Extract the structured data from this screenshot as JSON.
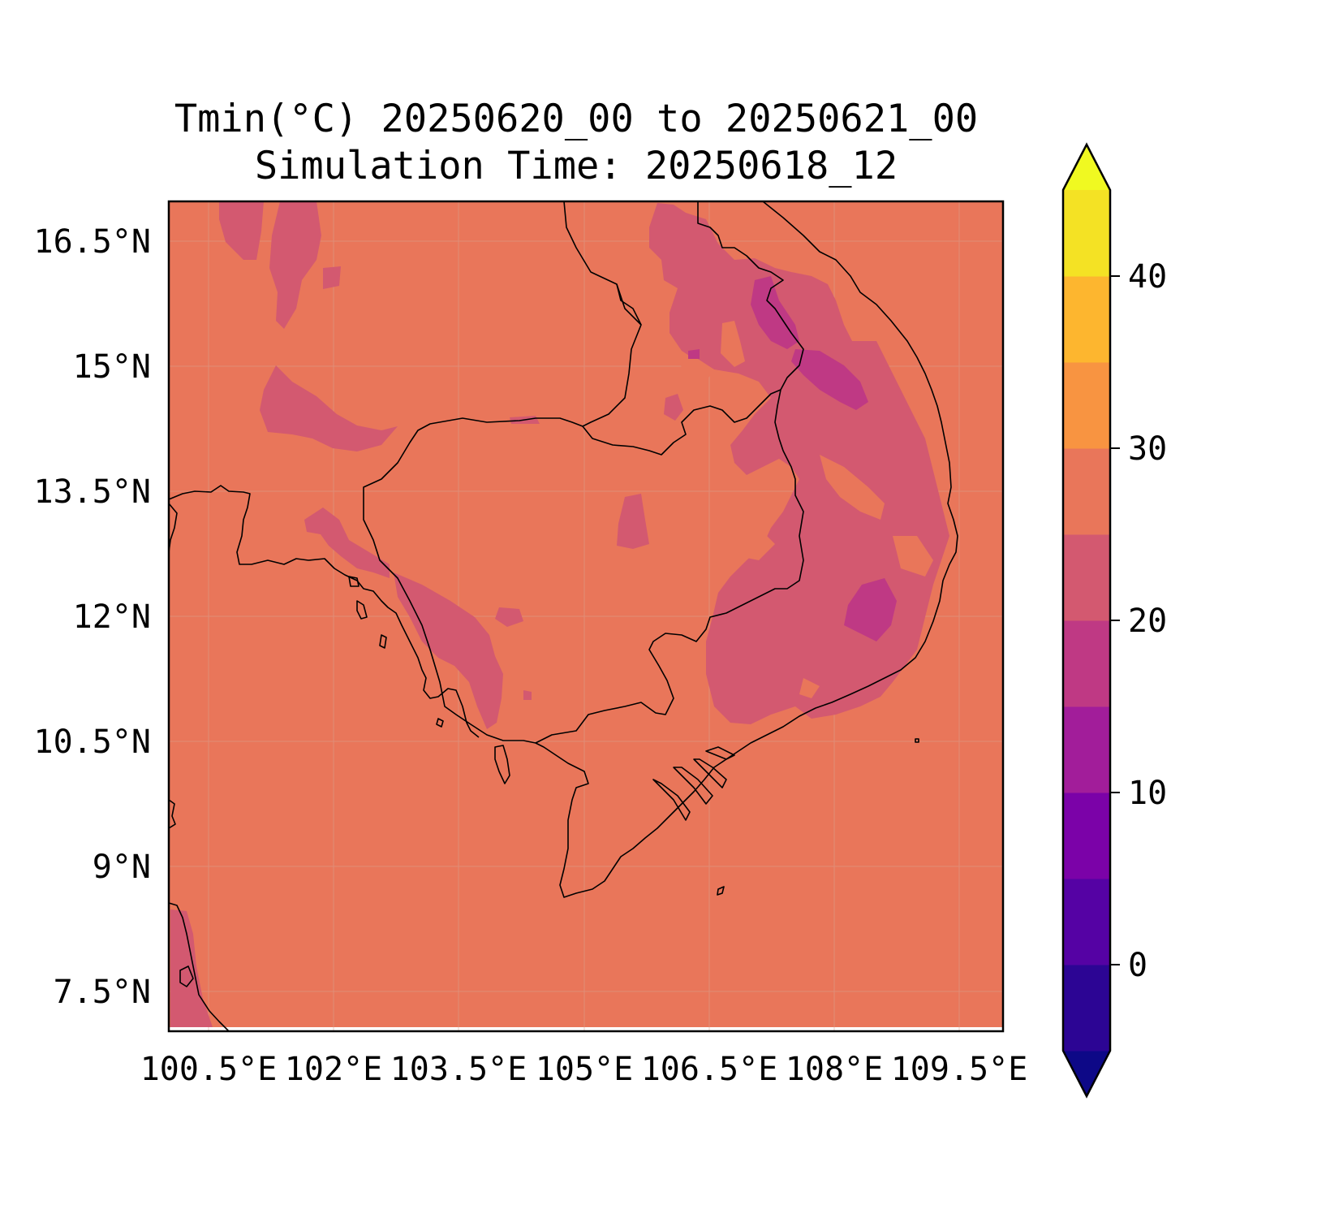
{
  "title": {
    "line1": "Tmin(°C) 20250620_00 to 20250621_00",
    "line2": "Simulation Time: 20250618_12"
  },
  "map": {
    "region": "Mainland Southeast Asia (Cambodia, southern Laos, southern Vietnam, eastern Thailand)",
    "lat_labels": [
      "16.5°N",
      "15°N",
      "13.5°N",
      "12°N",
      "10.5°N",
      "9°N",
      "7.5°N"
    ],
    "lon_labels": [
      "100.5°E",
      "102°E",
      "103.5°E",
      "105°E",
      "106.5°E",
      "108°E",
      "109.5°E"
    ],
    "lat_values": [
      16.5,
      15,
      13.5,
      12,
      10.5,
      9,
      7.5
    ],
    "lon_values": [
      100.5,
      102,
      103.5,
      105,
      106.5,
      108,
      109.5
    ],
    "dominant_fill_color": "#e9765a",
    "features": [
      "Minimum temperatures mostly in the 25–30 °C band across lowlands and sea",
      "20–25 °C band over the Annamite highlands and Central Highlands of Vietnam, Cardamom Mountains and parts of northeast Thailand",
      "15–20 °C pockets over the Bolaven Plateau region and the Lam Dong / Dak Lak highlands"
    ]
  },
  "colorbar": {
    "tick_labels": [
      "0",
      "10",
      "20",
      "30",
      "40"
    ],
    "levels": [
      -5,
      0,
      5,
      10,
      15,
      20,
      25,
      30,
      35,
      40,
      45
    ],
    "colors": [
      "#0d0887",
      "#2c0594",
      "#5502a4",
      "#7b02a8",
      "#a21d9a",
      "#bf3984",
      "#d35970",
      "#e9765a",
      "#f89441",
      "#fdb62f",
      "#f4e224",
      "#f0f921"
    ],
    "extend": "both"
  }
}
